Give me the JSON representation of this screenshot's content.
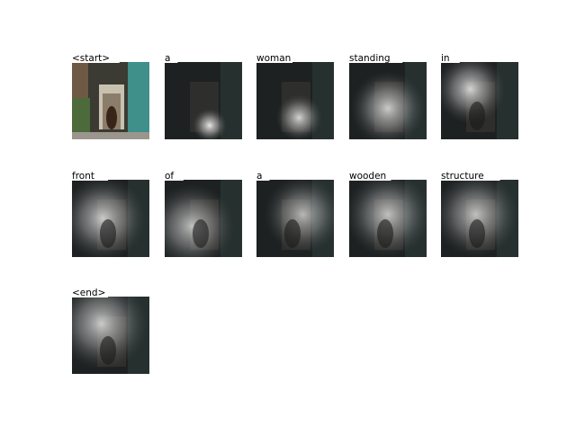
{
  "captions": [
    "<start>",
    "a",
    "woman",
    "standing",
    "in",
    "front",
    "of",
    "a",
    "wooden",
    "structure",
    "<end>"
  ]
}
